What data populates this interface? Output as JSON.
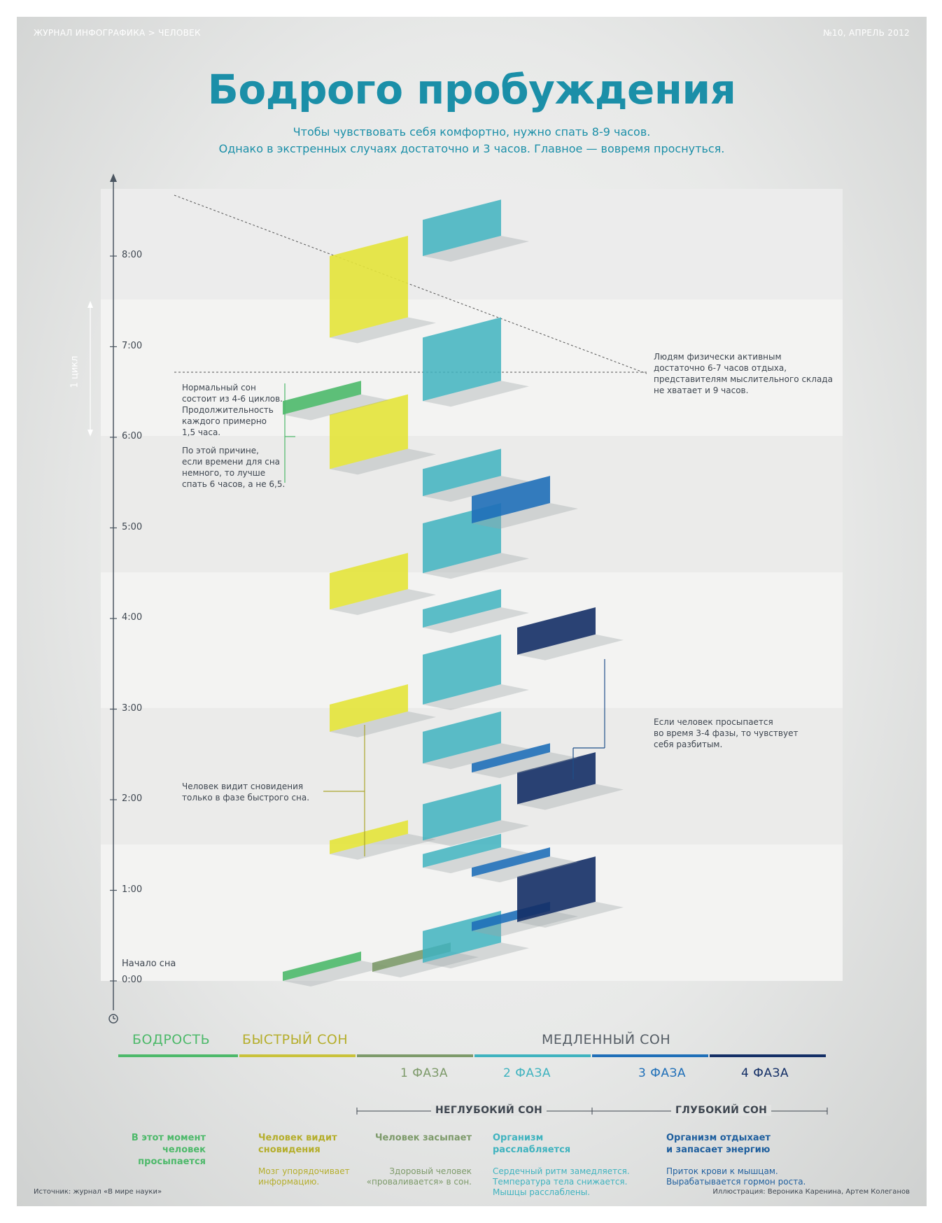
{
  "header": {
    "left": "ЖУРНАЛ ИНФОГРАФИКА > ЧЕЛОВЕК",
    "right": "№10, АПРЕЛЬ 2012"
  },
  "title": "Бодрого пробуждения",
  "subtitle": [
    "Чтобы чувствовать себя комфортно, нужно спать 8-9 часов.",
    "Однако в экстренных случаях достаточно и 3 часов. Главное — вовремя проснуться."
  ],
  "axis": {
    "ticks": [
      {
        "label": "0:00",
        "hour": 0
      },
      {
        "label": "1:00",
        "hour": 1
      },
      {
        "label": "2:00",
        "hour": 2
      },
      {
        "label": "3:00",
        "hour": 3
      },
      {
        "label": "4:00",
        "hour": 4
      },
      {
        "label": "5:00",
        "hour": 5
      },
      {
        "label": "6:00",
        "hour": 6
      },
      {
        "label": "7:00",
        "hour": 7
      },
      {
        "label": "8:00",
        "hour": 8
      }
    ],
    "start_label": "Начало сна",
    "cycle_label": "1 цикл",
    "cycle_hours": 1.5
  },
  "notes": {
    "cycles": [
      "Нормальный сон",
      "состоит из 4-6 циклов.",
      "Продолжительность",
      "каждого примерно",
      "1,5 часа."
    ],
    "reason": [
      "По этой причине,",
      "если времени для сна",
      "немного, то лучше",
      "спать 6 часов, а не 6,5."
    ],
    "dreams": [
      "Человек видит сновидения",
      "только в фазе быстрого сна."
    ],
    "active": [
      "Людям физически активным",
      "достаточно 6-7 часов отдыха,",
      "представителям мыслительного склада",
      "не хватает и 9 часов."
    ],
    "broken": [
      "Если человек просыпается",
      "во время 3-4 фазы, то чувствует",
      "себя разбитым."
    ]
  },
  "legend": {
    "stages": [
      {
        "label": "БОДРОСТЬ",
        "color": "#4db96a"
      },
      {
        "label": "БЫСТРЫЙ СОН",
        "color": "#c9c23a"
      },
      {
        "label": "",
        "color": "#7d9a6a"
      },
      {
        "label": "",
        "color": "#3fb3bf"
      },
      {
        "label": "",
        "color": "#1f6fb8"
      },
      {
        "label": "",
        "color": "#142f66"
      }
    ],
    "slow_sleep": "МЕДЛЕННЫЙ СОН",
    "phases": [
      {
        "label": "1 ФАЗА",
        "color": "#7d9a6a"
      },
      {
        "label": "2 ФАЗА",
        "color": "#3fb3bf"
      },
      {
        "label": "3 ФАЗА",
        "color": "#1f6fb8"
      },
      {
        "label": "4 ФАЗА",
        "color": "#142f66"
      }
    ],
    "shallow": "НЕГЛУБОКИЙ СОН",
    "deep": "ГЛУБОКИЙ СОН"
  },
  "descriptions": {
    "wake": {
      "head": [
        "В этот момент",
        "человек просыпается"
      ],
      "body": []
    },
    "rem": {
      "head": [
        "Человек видит",
        "сновидения"
      ],
      "body": [
        "Мозг упорядочивает",
        "информацию."
      ]
    },
    "phase1": {
      "head": [
        "Человек засыпает"
      ],
      "body": [
        "Здоровый человек",
        "«проваливается» в сон."
      ]
    },
    "phase2": {
      "head": [
        "Организм",
        "расслабляется"
      ],
      "body": [
        "Сердечный ритм замедляется.",
        "Температура тела снижается.",
        "Мышцы расслаблены."
      ]
    },
    "deep": {
      "head": [
        "Организм отдыхает",
        "и запасает энергию"
      ],
      "body": [
        "Приток крови к мышцам.",
        "Вырабатывается гормон роста."
      ]
    }
  },
  "footer": {
    "source": "Источник: журнал «В мире науки»",
    "credits": "Иллюстрация: Вероника Каренина, Артем Колеганов"
  },
  "colors": {
    "title": "#1b8fa8",
    "wake": "#4db96a",
    "rem": "#e4e43a",
    "phase1": "#7d9a6a",
    "phase2": "#3fb3bf",
    "phase3": "#1f6fb8",
    "phase4": "#142f66"
  },
  "chart_data": {
    "type": "diagram",
    "hypnogram": [
      {
        "stage": "wake",
        "start": 0.0,
        "end": 0.1
      },
      {
        "stage": "phase1",
        "start": 0.1,
        "end": 0.2
      },
      {
        "stage": "phase2",
        "start": 0.2,
        "end": 0.55
      },
      {
        "stage": "phase3",
        "start": 0.55,
        "end": 0.65
      },
      {
        "stage": "phase4",
        "start": 0.65,
        "end": 1.15
      },
      {
        "stage": "phase3",
        "start": 1.15,
        "end": 1.25
      },
      {
        "stage": "phase2",
        "start": 1.25,
        "end": 1.4
      },
      {
        "stage": "rem",
        "start": 1.4,
        "end": 1.55
      },
      {
        "stage": "phase2",
        "start": 1.55,
        "end": 1.95
      },
      {
        "stage": "phase4",
        "start": 1.95,
        "end": 2.3
      },
      {
        "stage": "phase3",
        "start": 2.3,
        "end": 2.4
      },
      {
        "stage": "phase2",
        "start": 2.4,
        "end": 2.75
      },
      {
        "stage": "rem",
        "start": 2.75,
        "end": 3.05
      },
      {
        "stage": "phase2",
        "start": 3.05,
        "end": 3.6
      },
      {
        "stage": "phase4",
        "start": 3.6,
        "end": 3.9
      },
      {
        "stage": "phase2",
        "start": 3.9,
        "end": 4.1
      },
      {
        "stage": "rem",
        "start": 4.1,
        "end": 4.5
      },
      {
        "stage": "phase2",
        "start": 4.5,
        "end": 5.05
      },
      {
        "stage": "phase3",
        "start": 5.05,
        "end": 5.35
      },
      {
        "stage": "phase2",
        "start": 5.35,
        "end": 5.65
      },
      {
        "stage": "rem",
        "start": 5.65,
        "end": 6.25
      },
      {
        "stage": "wake",
        "start": 6.25,
        "end": 6.4
      },
      {
        "stage": "phase2",
        "start": 6.4,
        "end": 7.1
      },
      {
        "stage": "rem",
        "start": 7.1,
        "end": 8.0
      },
      {
        "stage": "phase2",
        "start": 8.0,
        "end": 8.4
      }
    ]
  }
}
